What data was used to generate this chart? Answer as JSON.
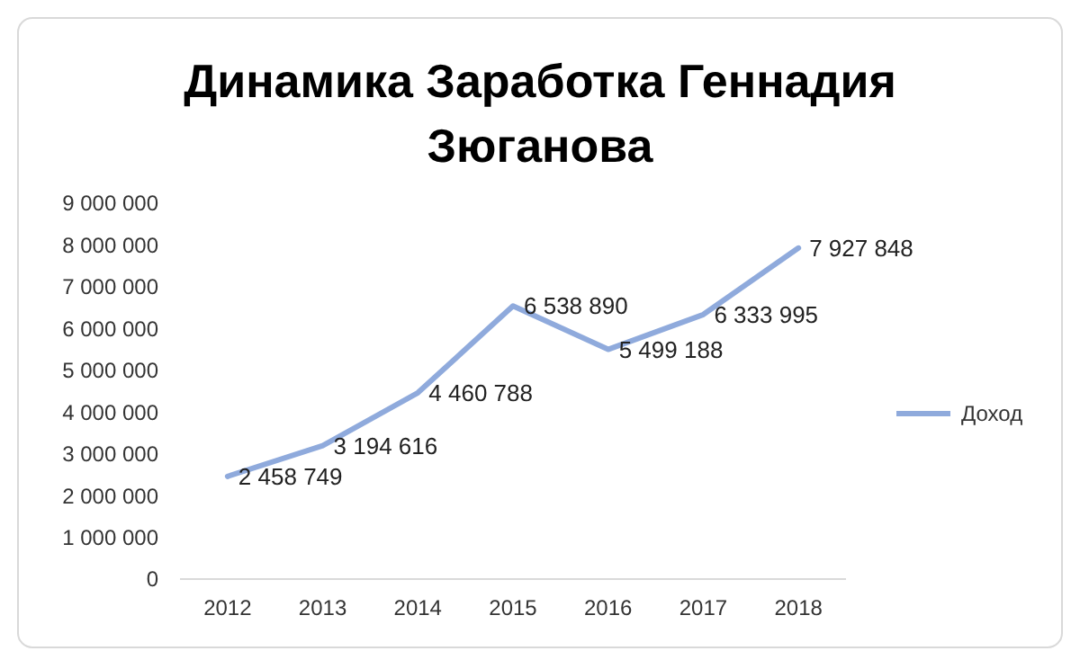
{
  "chart_data": {
    "type": "line",
    "title": "Динамика Заработка Геннадия Зюганова",
    "categories": [
      "2012",
      "2013",
      "2014",
      "2015",
      "2016",
      "2017",
      "2018"
    ],
    "series": [
      {
        "name": "Доход",
        "color": "#8faadc",
        "values": [
          2458749,
          3194616,
          4460788,
          6538890,
          5499188,
          6333995,
          7927848
        ],
        "value_labels": [
          "2 458 749",
          "3 194 616",
          "4 460 788",
          "6 538 890",
          "5 499 188",
          "6 333 995",
          "7 927 848"
        ]
      }
    ],
    "ylim": [
      0,
      9000000
    ],
    "yticks": [
      {
        "value": 0,
        "label": "0"
      },
      {
        "value": 1000000,
        "label": "1 000 000"
      },
      {
        "value": 2000000,
        "label": "2 000 000"
      },
      {
        "value": 3000000,
        "label": "3 000 000"
      },
      {
        "value": 4000000,
        "label": "4 000 000"
      },
      {
        "value": 5000000,
        "label": "5 000 000"
      },
      {
        "value": 6000000,
        "label": "6 000 000"
      },
      {
        "value": 7000000,
        "label": "7 000 000"
      },
      {
        "value": 8000000,
        "label": "8 000 000"
      },
      {
        "value": 9000000,
        "label": "9 000 000"
      }
    ],
    "grid": false,
    "legend": "right",
    "marker": "none",
    "line_style": "solid"
  }
}
